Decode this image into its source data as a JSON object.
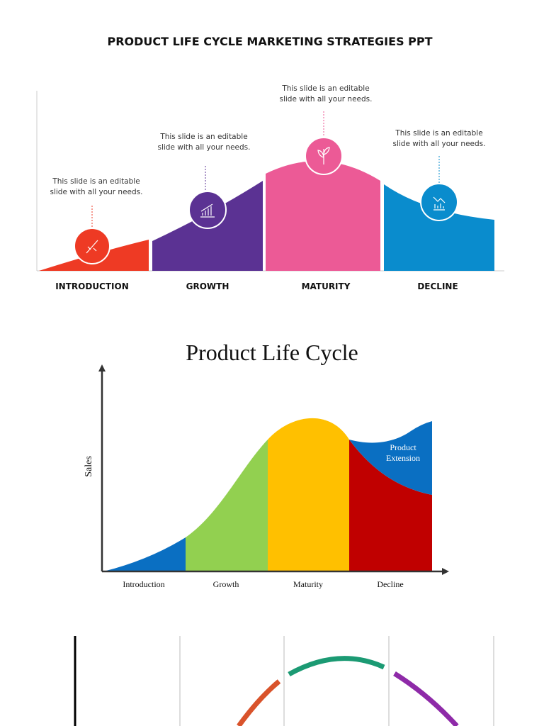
{
  "slide1": {
    "title": "PRODUCT LIFE CYCLE MARKETING STRATEGIES PPT",
    "stages": [
      {
        "label": "INTRODUCTION",
        "note": [
          "This slide is an editable",
          "slide with all your needs."
        ]
      },
      {
        "label": "GROWTH",
        "note": [
          "This slide is an editable",
          "slide with all your needs."
        ]
      },
      {
        "label": "MATURITY",
        "note": [
          "This slide is an editable",
          "slide with all your needs."
        ]
      },
      {
        "label": "DECLINE",
        "note": [
          "This slide is an editable",
          "slide with all your needs."
        ]
      }
    ]
  },
  "slide2": {
    "title": "Product Life Cycle",
    "y_axis_label": "Sales",
    "stages": [
      "Introduction",
      "Growth",
      "Maturity",
      "Decline"
    ],
    "extension_label": [
      "Product",
      "Extension"
    ]
  }
}
